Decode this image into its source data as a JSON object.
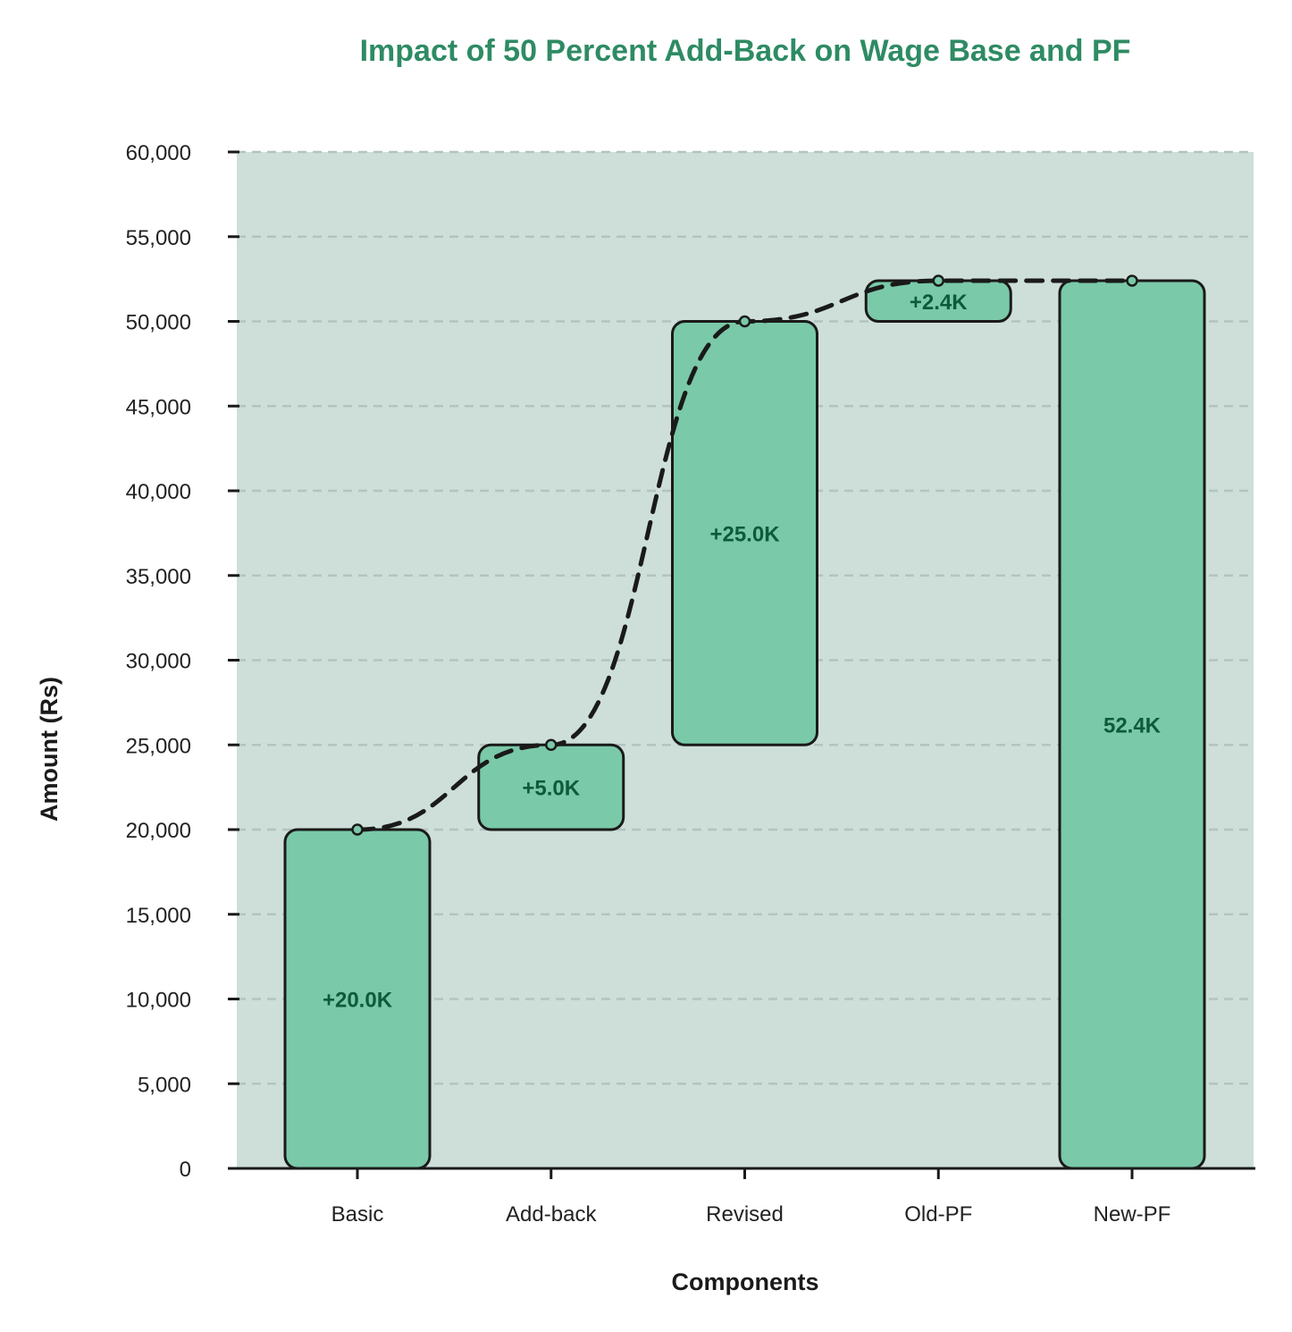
{
  "chart_data": {
    "type": "bar",
    "subtype": "waterfall",
    "title": "Impact of 50 Percent Add-Back on Wage Base and PF",
    "xlabel": "Components",
    "ylabel": "Amount (Rs)",
    "ylim": [
      0,
      60000
    ],
    "yticks": [
      0,
      5000,
      10000,
      15000,
      20000,
      25000,
      30000,
      35000,
      40000,
      45000,
      50000,
      55000,
      60000
    ],
    "ytick_labels": [
      "0",
      "5,000",
      "10,000",
      "15,000",
      "20,000",
      "25,000",
      "30,000",
      "35,000",
      "40,000",
      "45,000",
      "50,000",
      "55,000",
      "60,000"
    ],
    "grid": true,
    "categories": [
      "Basic",
      "Add-back",
      "Revised",
      "Old-PF",
      "New-PF"
    ],
    "bars": [
      {
        "category": "Basic",
        "start": 0,
        "end": 20000,
        "label": "+20.0K"
      },
      {
        "category": "Add-back",
        "start": 20000,
        "end": 25000,
        "label": "+5.0K"
      },
      {
        "category": "Revised",
        "start": 25000,
        "end": 50000,
        "label": "+25.0K"
      },
      {
        "category": "Old-PF",
        "start": 50000,
        "end": 52400,
        "label": "+2.4K"
      },
      {
        "category": "New-PF",
        "start": 0,
        "end": 52400,
        "label": "52.4K"
      }
    ],
    "cumulative_line": [
      20000,
      25000,
      50000,
      52400,
      52400
    ],
    "colors": {
      "bar_fill": "#7ac9a8",
      "bar_stroke": "#1a1a1a",
      "plot_background": "#cddfd8",
      "title": "#2e8b64",
      "bar_label": "#0d5a3c",
      "line": "#1a1a1a"
    }
  }
}
